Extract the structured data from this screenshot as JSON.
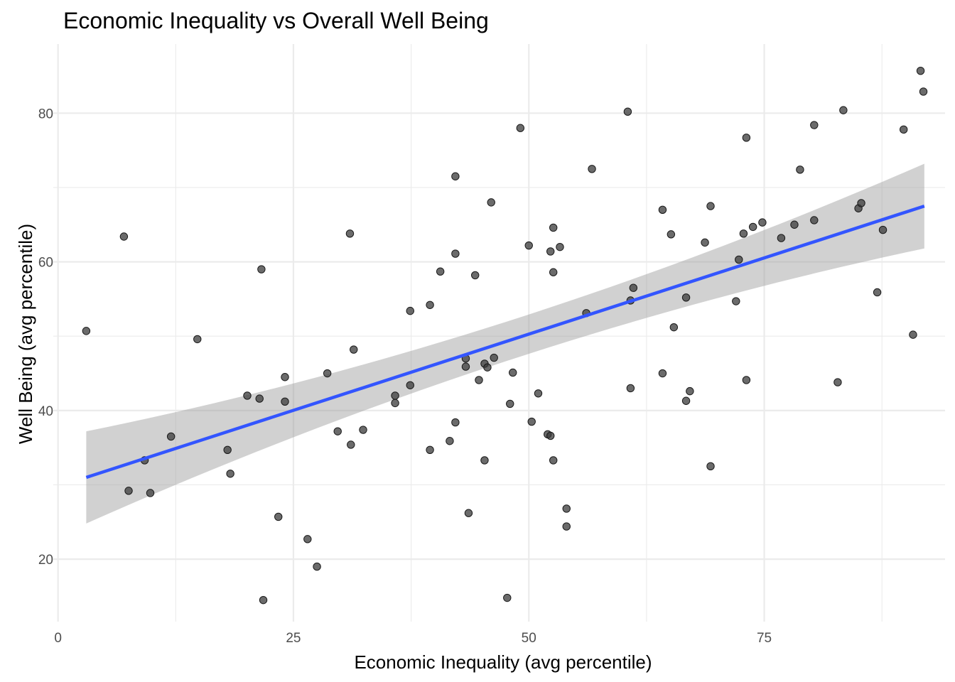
{
  "chart_data": {
    "type": "scatter",
    "title": "Economic Inequality vs Overall Well Being",
    "xlabel": "Economic Inequality (avg percentile)",
    "ylabel": "Well Being (avg percentile)",
    "xlim": [
      -0.5,
      94.2
    ],
    "ylim": [
      11.6,
      89.3
    ],
    "x_ticks": [
      0,
      25,
      50,
      75
    ],
    "y_ticks": [
      20,
      40,
      60,
      80
    ],
    "x_tick_labels": [
      "0",
      "25",
      "50",
      "75"
    ],
    "y_tick_labels": [
      "20",
      "40",
      "60",
      "80"
    ],
    "grid": true,
    "legend": "none",
    "trend": {
      "method": "linear",
      "x": [
        3.0,
        92.0
      ],
      "y": [
        31.0,
        67.5
      ],
      "ci_lower": [
        24.8,
        61.8
      ],
      "ci_upper": [
        37.2,
        73.2
      ],
      "ci_mid_x": 47.5,
      "ci_mid_lower": 46.6,
      "ci_mid_upper": 51.9,
      "line_color": "#3355ff",
      "band_color": "#999999"
    },
    "points": [
      [
        3.0,
        50.7
      ],
      [
        7.0,
        63.4
      ],
      [
        7.5,
        29.2
      ],
      [
        9.2,
        33.3
      ],
      [
        9.8,
        28.9
      ],
      [
        12.0,
        36.5
      ],
      [
        14.8,
        49.6
      ],
      [
        18.0,
        34.7
      ],
      [
        18.3,
        31.5
      ],
      [
        20.1,
        42.0
      ],
      [
        21.4,
        41.6
      ],
      [
        21.6,
        59.0
      ],
      [
        21.8,
        14.5
      ],
      [
        23.4,
        25.7
      ],
      [
        24.1,
        44.5
      ],
      [
        24.1,
        41.2
      ],
      [
        26.5,
        22.7
      ],
      [
        27.5,
        19.0
      ],
      [
        28.6,
        45.0
      ],
      [
        29.7,
        37.2
      ],
      [
        31.0,
        63.8
      ],
      [
        31.1,
        35.4
      ],
      [
        31.4,
        48.2
      ],
      [
        32.4,
        37.4
      ],
      [
        35.8,
        42.0
      ],
      [
        35.8,
        41.0
      ],
      [
        37.4,
        53.4
      ],
      [
        37.4,
        43.4
      ],
      [
        39.5,
        54.2
      ],
      [
        39.5,
        34.7
      ],
      [
        40.6,
        58.7
      ],
      [
        41.6,
        35.9
      ],
      [
        42.2,
        71.5
      ],
      [
        42.2,
        61.1
      ],
      [
        42.2,
        38.4
      ],
      [
        43.3,
        47.0
      ],
      [
        43.3,
        45.9
      ],
      [
        43.6,
        26.2
      ],
      [
        44.3,
        58.2
      ],
      [
        44.7,
        44.1
      ],
      [
        45.3,
        46.3
      ],
      [
        45.3,
        33.3
      ],
      [
        45.6,
        45.8
      ],
      [
        46.0,
        68.0
      ],
      [
        46.3,
        47.1
      ],
      [
        47.7,
        14.8
      ],
      [
        48.0,
        40.9
      ],
      [
        48.3,
        45.1
      ],
      [
        49.1,
        78.0
      ],
      [
        50.0,
        62.2
      ],
      [
        50.3,
        38.5
      ],
      [
        51.0,
        42.3
      ],
      [
        52.0,
        36.8
      ],
      [
        52.3,
        36.6
      ],
      [
        52.3,
        61.4
      ],
      [
        52.6,
        64.6
      ],
      [
        52.6,
        58.6
      ],
      [
        52.6,
        33.3
      ],
      [
        53.3,
        62.0
      ],
      [
        54.0,
        26.8
      ],
      [
        54.0,
        24.4
      ],
      [
        56.1,
        53.1
      ],
      [
        56.7,
        72.5
      ],
      [
        60.5,
        80.2
      ],
      [
        60.8,
        54.8
      ],
      [
        60.8,
        43.0
      ],
      [
        61.1,
        56.5
      ],
      [
        64.2,
        67.0
      ],
      [
        64.2,
        45.0
      ],
      [
        65.1,
        63.7
      ],
      [
        65.4,
        51.2
      ],
      [
        66.7,
        55.2
      ],
      [
        66.7,
        41.3
      ],
      [
        67.1,
        42.6
      ],
      [
        68.7,
        62.6
      ],
      [
        69.3,
        67.5
      ],
      [
        69.3,
        32.5
      ],
      [
        72.0,
        54.7
      ],
      [
        72.3,
        60.3
      ],
      [
        72.8,
        63.8
      ],
      [
        73.1,
        76.7
      ],
      [
        73.1,
        44.1
      ],
      [
        73.8,
        64.7
      ],
      [
        74.8,
        65.3
      ],
      [
        76.8,
        63.2
      ],
      [
        78.2,
        65.0
      ],
      [
        78.8,
        72.4
      ],
      [
        80.3,
        78.4
      ],
      [
        80.3,
        65.6
      ],
      [
        82.8,
        43.8
      ],
      [
        83.4,
        80.4
      ],
      [
        85.0,
        67.2
      ],
      [
        85.3,
        67.9
      ],
      [
        87.0,
        55.9
      ],
      [
        87.6,
        64.3
      ],
      [
        89.8,
        77.8
      ],
      [
        90.8,
        50.2
      ],
      [
        91.6,
        85.7
      ],
      [
        91.9,
        82.9
      ]
    ]
  }
}
